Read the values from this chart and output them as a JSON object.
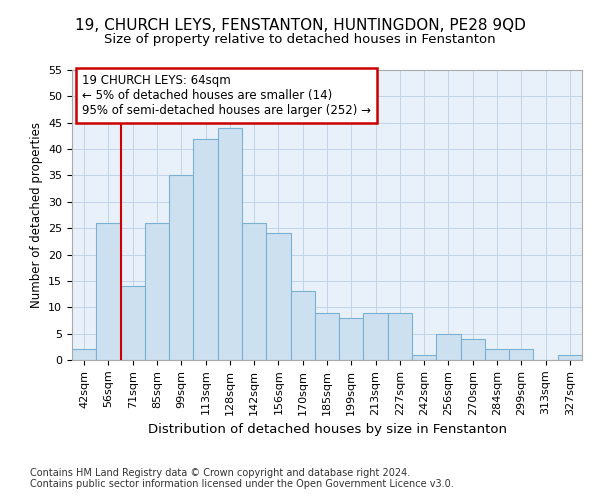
{
  "title1": "19, CHURCH LEYS, FENSTANTON, HUNTINGDON, PE28 9QD",
  "title2": "Size of property relative to detached houses in Fenstanton",
  "xlabel": "Distribution of detached houses by size in Fenstanton",
  "ylabel": "Number of detached properties",
  "bar_values": [
    2,
    26,
    14,
    26,
    35,
    42,
    44,
    26,
    24,
    13,
    9,
    8,
    9,
    9,
    1,
    5,
    4,
    2,
    2,
    0,
    1
  ],
  "bin_labels": [
    "42sqm",
    "56sqm",
    "71sqm",
    "85sqm",
    "99sqm",
    "113sqm",
    "128sqm",
    "142sqm",
    "156sqm",
    "170sqm",
    "185sqm",
    "199sqm",
    "213sqm",
    "227sqm",
    "242sqm",
    "256sqm",
    "270sqm",
    "284sqm",
    "299sqm",
    "313sqm",
    "327sqm"
  ],
  "bar_color": "#cde0f0",
  "bar_edge_color": "#7ab0d4",
  "vline_x": 2.0,
  "vline_color": "#cc0000",
  "annotation_text": "19 CHURCH LEYS: 64sqm\n← 5% of detached houses are smaller (14)\n95% of semi-detached houses are larger (252) →",
  "annotation_box_color": "#cc0000",
  "ylim": [
    0,
    55
  ],
  "yticks": [
    0,
    5,
    10,
    15,
    20,
    25,
    30,
    35,
    40,
    45,
    50,
    55
  ],
  "footer_line1": "Contains HM Land Registry data © Crown copyright and database right 2024.",
  "footer_line2": "Contains public sector information licensed under the Open Government Licence v3.0.",
  "grid_color": "#c0d4e8",
  "background_color": "#e8f1fa",
  "title1_fontsize": 11,
  "title2_fontsize": 9.5,
  "xlabel_fontsize": 9.5,
  "ylabel_fontsize": 8.5,
  "tick_fontsize": 8,
  "footer_fontsize": 7,
  "ann_fontsize": 8.5
}
